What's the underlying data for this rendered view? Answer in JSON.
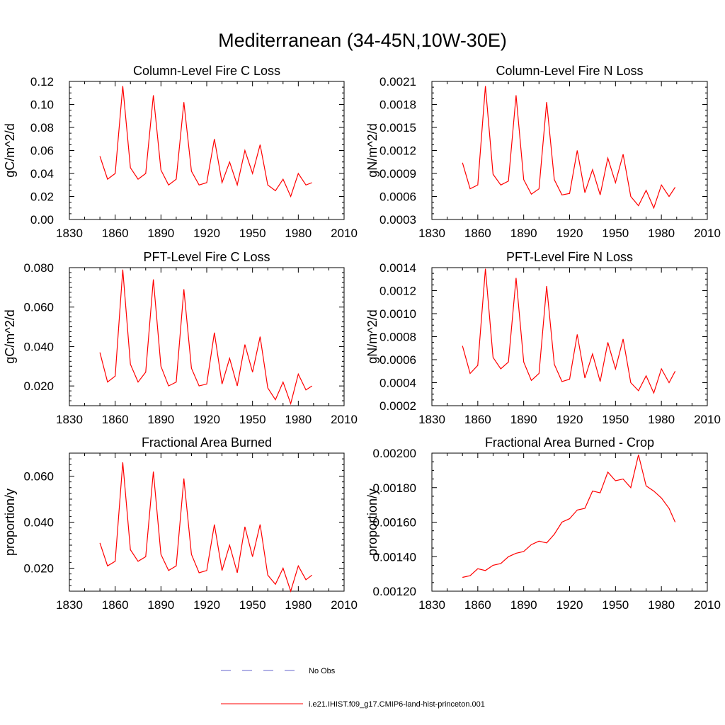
{
  "figure": {
    "title": "Mediterranean (34-45N,10W-30E)"
  },
  "legend": {
    "entries": [
      {
        "label": "No Obs",
        "color": "#6666cc",
        "style": "dashed"
      },
      {
        "label": "i.e21.IHIST.f09_g17.CMIP6-land-hist-princeton.001",
        "color": "#ff0000",
        "style": "solid"
      }
    ]
  },
  "chart_data": [
    {
      "type": "line",
      "title": "Column-Level Fire C Loss",
      "ylabel": "gC/m^2/d",
      "xlim": [
        1830,
        2010
      ],
      "xticks": [
        "1830",
        "1860",
        "1890",
        "1920",
        "1950",
        "1980",
        "2010"
      ],
      "ylim": [
        0,
        0.12
      ],
      "yticks": [
        "0.00",
        "0.02",
        "0.04",
        "0.06",
        "0.08",
        "0.10",
        "0.12"
      ],
      "x": [
        1850,
        1855,
        1860,
        1865,
        1870,
        1875,
        1880,
        1885,
        1890,
        1895,
        1900,
        1905,
        1910,
        1915,
        1920,
        1925,
        1930,
        1935,
        1940,
        1945,
        1950,
        1955,
        1960,
        1965,
        1970,
        1975,
        1980,
        1985,
        1989
      ],
      "series": [
        {
          "color": "#ff0000",
          "values": [
            0.055,
            0.035,
            0.04,
            0.116,
            0.045,
            0.035,
            0.04,
            0.108,
            0.043,
            0.03,
            0.035,
            0.102,
            0.042,
            0.03,
            0.032,
            0.07,
            0.032,
            0.05,
            0.03,
            0.06,
            0.04,
            0.065,
            0.03,
            0.025,
            0.035,
            0.02,
            0.04,
            0.03,
            0.032
          ]
        }
      ]
    },
    {
      "type": "line",
      "title": "Column-Level Fire N Loss",
      "ylabel": "gN/m^2/d",
      "xlim": [
        1830,
        2010
      ],
      "xticks": [
        "1830",
        "1860",
        "1890",
        "1920",
        "1950",
        "1980",
        "2010"
      ],
      "ylim": [
        0.0003,
        0.0021
      ],
      "yticks": [
        "0.0003",
        "0.0006",
        "0.0009",
        "0.0012",
        "0.0015",
        "0.0018",
        "0.0021"
      ],
      "x": [
        1850,
        1855,
        1860,
        1865,
        1870,
        1875,
        1880,
        1885,
        1890,
        1895,
        1900,
        1905,
        1910,
        1915,
        1920,
        1925,
        1930,
        1935,
        1940,
        1945,
        1950,
        1955,
        1960,
        1965,
        1970,
        1975,
        1980,
        1985,
        1989
      ],
      "series": [
        {
          "color": "#ff0000",
          "values": [
            0.00104,
            0.0007,
            0.00075,
            0.00204,
            0.00089,
            0.00075,
            0.0008,
            0.00192,
            0.00082,
            0.00063,
            0.0007,
            0.00183,
            0.00082,
            0.00062,
            0.00064,
            0.0012,
            0.00065,
            0.00095,
            0.00062,
            0.0011,
            0.00078,
            0.00115,
            0.0006,
            0.00048,
            0.00068,
            0.00045,
            0.00075,
            0.0006,
            0.00072
          ]
        }
      ]
    },
    {
      "type": "line",
      "title": "PFT-Level Fire C Loss",
      "ylabel": "gC/m^2/d",
      "xlim": [
        1830,
        2010
      ],
      "xticks": [
        "1830",
        "1860",
        "1890",
        "1920",
        "1950",
        "1980",
        "2010"
      ],
      "ylim": [
        0.01,
        0.08
      ],
      "yticks": [
        "",
        "0.020",
        "",
        "0.040",
        "",
        "0.060",
        "",
        "0.080"
      ],
      "x": [
        1850,
        1855,
        1860,
        1865,
        1870,
        1875,
        1880,
        1885,
        1890,
        1895,
        1900,
        1905,
        1910,
        1915,
        1920,
        1925,
        1930,
        1935,
        1940,
        1945,
        1950,
        1955,
        1960,
        1965,
        1970,
        1975,
        1980,
        1985,
        1989
      ],
      "series": [
        {
          "color": "#ff0000",
          "values": [
            0.037,
            0.022,
            0.025,
            0.079,
            0.031,
            0.022,
            0.027,
            0.074,
            0.03,
            0.02,
            0.022,
            0.069,
            0.029,
            0.02,
            0.021,
            0.047,
            0.021,
            0.034,
            0.02,
            0.041,
            0.027,
            0.045,
            0.019,
            0.013,
            0.022,
            0.011,
            0.026,
            0.018,
            0.02
          ]
        }
      ]
    },
    {
      "type": "line",
      "title": "PFT-Level Fire N Loss",
      "ylabel": "gN/m^2/d",
      "xlim": [
        1830,
        2010
      ],
      "xticks": [
        "1830",
        "1860",
        "1890",
        "1920",
        "1950",
        "1980",
        "2010"
      ],
      "ylim": [
        0.0002,
        0.0014
      ],
      "yticks": [
        "0.0002",
        "0.0004",
        "0.0006",
        "0.0008",
        "0.0010",
        "0.0012",
        "0.0014"
      ],
      "x": [
        1850,
        1855,
        1860,
        1865,
        1870,
        1875,
        1880,
        1885,
        1890,
        1895,
        1900,
        1905,
        1910,
        1915,
        1920,
        1925,
        1930,
        1935,
        1940,
        1945,
        1950,
        1955,
        1960,
        1965,
        1970,
        1975,
        1980,
        1985,
        1989
      ],
      "series": [
        {
          "color": "#ff0000",
          "values": [
            0.00072,
            0.00048,
            0.00055,
            0.00139,
            0.00062,
            0.00052,
            0.00058,
            0.00131,
            0.00058,
            0.00042,
            0.00048,
            0.00124,
            0.00056,
            0.00041,
            0.00043,
            0.00082,
            0.00044,
            0.00065,
            0.00041,
            0.00075,
            0.00052,
            0.00078,
            0.0004,
            0.00033,
            0.00046,
            0.00031,
            0.00052,
            0.0004,
            0.0005
          ]
        }
      ]
    },
    {
      "type": "line",
      "title": "Fractional Area Burned",
      "ylabel": "proportion/y",
      "xlim": [
        1830,
        2010
      ],
      "xticks": [
        "1830",
        "1860",
        "1890",
        "1920",
        "1950",
        "1980",
        "2010"
      ],
      "ylim": [
        0.01,
        0.07
      ],
      "yticks": [
        "",
        "0.020",
        "",
        "0.040",
        "",
        "0.060",
        ""
      ],
      "x": [
        1850,
        1855,
        1860,
        1865,
        1870,
        1875,
        1880,
        1885,
        1890,
        1895,
        1900,
        1905,
        1910,
        1915,
        1920,
        1925,
        1930,
        1935,
        1940,
        1945,
        1950,
        1955,
        1960,
        1965,
        1970,
        1975,
        1980,
        1985,
        1989
      ],
      "series": [
        {
          "color": "#ff0000",
          "values": [
            0.031,
            0.021,
            0.023,
            0.066,
            0.028,
            0.023,
            0.025,
            0.062,
            0.026,
            0.019,
            0.021,
            0.059,
            0.026,
            0.018,
            0.019,
            0.039,
            0.019,
            0.03,
            0.018,
            0.038,
            0.025,
            0.039,
            0.017,
            0.013,
            0.02,
            0.01,
            0.021,
            0.015,
            0.017
          ]
        }
      ]
    },
    {
      "type": "line",
      "title": "Fractional Area Burned - Crop",
      "ylabel": "proportion/y",
      "xlim": [
        1830,
        2010
      ],
      "xticks": [
        "1830",
        "1860",
        "1890",
        "1920",
        "1950",
        "1980",
        "2010"
      ],
      "ylim": [
        0.0012,
        0.002
      ],
      "yticks": [
        "0.00120",
        "0.00140",
        "0.00160",
        "0.00180",
        "0.00200"
      ],
      "x": [
        1850,
        1855,
        1860,
        1865,
        1870,
        1875,
        1880,
        1885,
        1890,
        1895,
        1900,
        1905,
        1910,
        1915,
        1920,
        1925,
        1930,
        1935,
        1940,
        1945,
        1950,
        1955,
        1960,
        1965,
        1970,
        1975,
        1980,
        1985,
        1989
      ],
      "series": [
        {
          "color": "#ff0000",
          "values": [
            0.00128,
            0.00129,
            0.00133,
            0.00132,
            0.00135,
            0.00136,
            0.0014,
            0.00142,
            0.00143,
            0.00147,
            0.00149,
            0.00148,
            0.00153,
            0.0016,
            0.00162,
            0.00167,
            0.00168,
            0.00178,
            0.00177,
            0.00189,
            0.00184,
            0.00185,
            0.0018,
            0.00199,
            0.00181,
            0.00178,
            0.00174,
            0.00168,
            0.0016
          ]
        }
      ]
    }
  ]
}
